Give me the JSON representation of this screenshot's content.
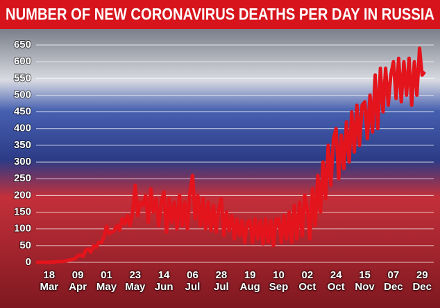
{
  "chart_data": {
    "type": "line",
    "title": "NUMBER OF NEW CORONAVIRUS DEATHS PER DAY IN RUSSIA",
    "categories": [
      null,
      null,
      null,
      null,
      null,
      "18 Mar",
      null,
      null,
      null,
      null,
      null,
      null,
      null,
      null,
      null,
      null,
      "09 Apr",
      null,
      null,
      null,
      null,
      null,
      null,
      null,
      null,
      null,
      null,
      "01 May",
      null,
      null,
      null,
      null,
      null,
      null,
      null,
      null,
      null,
      null,
      "23 May",
      null,
      null,
      null,
      null,
      null,
      null,
      null,
      null,
      null,
      null,
      "14 Jun",
      null,
      null,
      null,
      null,
      null,
      null,
      null,
      null,
      null,
      null,
      "06 Jul",
      null,
      null,
      null,
      null,
      null,
      null,
      null,
      null,
      null,
      null,
      "28 Jul",
      null,
      null,
      null,
      null,
      null,
      null,
      null,
      null,
      null,
      null,
      "19 Aug",
      null,
      null,
      null,
      null,
      null,
      null,
      null,
      null,
      null,
      null,
      "10 Sep",
      null,
      null,
      null,
      null,
      null,
      null,
      null,
      null,
      null,
      null,
      "02 Oct",
      null,
      null,
      null,
      null,
      null,
      null,
      null,
      null,
      null,
      null,
      "24 Oct",
      null,
      null,
      null,
      null,
      null,
      null,
      null,
      null,
      null,
      null,
      "15 Nov",
      null,
      null,
      null,
      null,
      null,
      null,
      null,
      null,
      null,
      null,
      "07 Dec",
      null,
      null,
      null,
      null,
      null,
      null,
      null,
      null,
      null,
      null,
      "29 Dec",
      null
    ],
    "values": [
      0,
      0,
      0,
      0,
      0,
      0,
      1,
      1,
      2,
      3,
      2,
      4,
      5,
      7,
      9,
      11,
      20,
      22,
      18,
      36,
      40,
      30,
      50,
      44,
      60,
      58,
      75,
      108,
      85,
      90,
      95,
      110,
      96,
      130,
      115,
      140,
      110,
      150,
      230,
      140,
      180,
      170,
      200,
      120,
      220,
      150,
      190,
      110,
      180,
      210,
      90,
      190,
      120,
      180,
      100,
      200,
      110,
      180,
      100,
      210,
      260,
      130,
      200,
      110,
      190,
      100,
      180,
      95,
      170,
      90,
      160,
      190,
      80,
      150,
      95,
      140,
      70,
      130,
      80,
      125,
      60,
      120,
      125,
      60,
      130,
      70,
      125,
      55,
      130,
      60,
      125,
      50,
      130,
      130,
      60,
      140,
      70,
      150,
      60,
      170,
      70,
      180,
      80,
      200,
      160,
      70,
      220,
      110,
      260,
      150,
      300,
      190,
      350,
      230,
      370,
      400,
      250,
      380,
      280,
      420,
      300,
      450,
      330,
      470,
      350,
      470,
      480,
      370,
      500,
      390,
      560,
      400,
      580,
      450,
      580,
      470,
      560,
      600,
      490,
      610,
      480,
      600,
      500,
      610,
      470,
      600,
      500,
      640,
      560,
      570
    ],
    "color": "#e3141c",
    "ylim": [
      0,
      650
    ],
    "yticks": [
      0,
      50,
      100,
      150,
      200,
      250,
      300,
      350,
      400,
      450,
      500,
      550,
      600,
      650
    ],
    "grid": true
  }
}
